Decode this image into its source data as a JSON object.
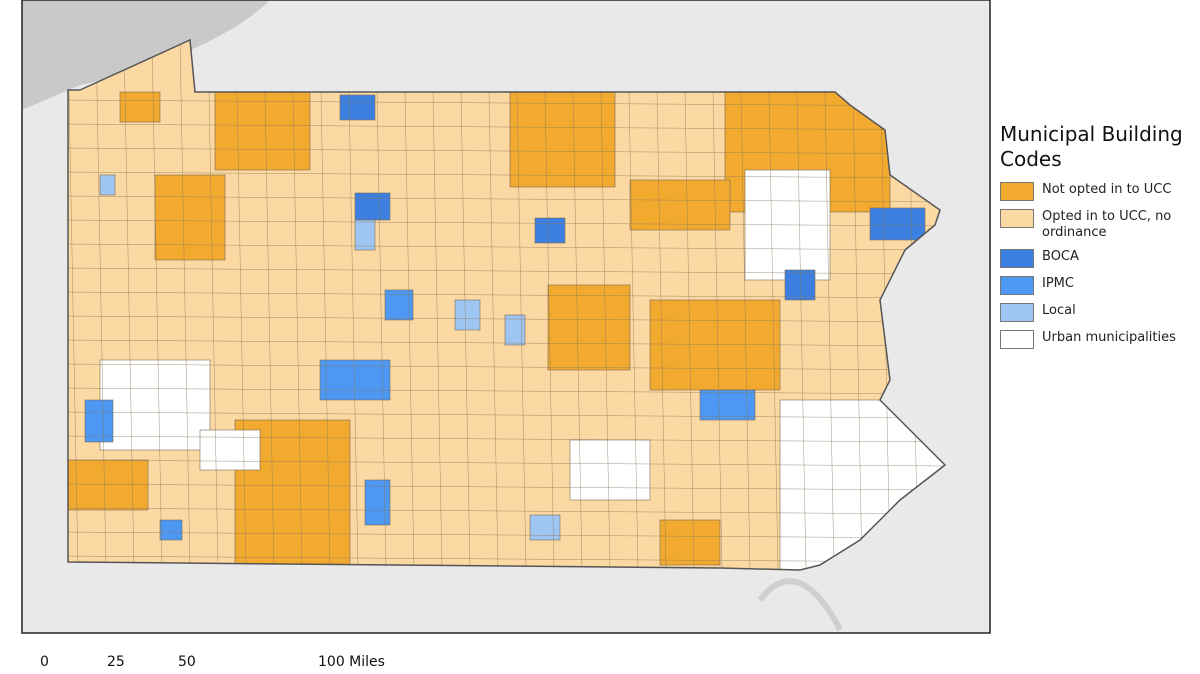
{
  "legend": {
    "title": "Municipal Building Codes",
    "items": [
      {
        "label": "Not opted in to UCC",
        "color": "#f2aa2e"
      },
      {
        "label": "Opted in to UCC, no ordinance",
        "color": "#fcd9a2"
      },
      {
        "label": "BOCA",
        "color": "#3b7fe0"
      },
      {
        "label": "IPMC",
        "color": "#4c98f2"
      },
      {
        "label": "Local",
        "color": "#9fc6f3"
      },
      {
        "label": "Urban municipalities",
        "color": "#ffffff"
      }
    ]
  },
  "scale_bar": {
    "labels": [
      "0",
      "25",
      "50",
      "100 Miles"
    ]
  }
}
